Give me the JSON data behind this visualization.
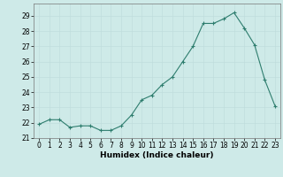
{
  "x": [
    0,
    1,
    2,
    3,
    4,
    5,
    6,
    7,
    8,
    9,
    10,
    11,
    12,
    13,
    14,
    15,
    16,
    17,
    18,
    19,
    20,
    21,
    22,
    23
  ],
  "y": [
    21.9,
    22.2,
    22.2,
    21.7,
    21.8,
    21.8,
    21.5,
    21.5,
    21.8,
    22.5,
    23.5,
    23.8,
    24.5,
    25.0,
    26.0,
    27.0,
    28.5,
    28.5,
    28.8,
    29.2,
    28.2,
    27.1,
    24.8,
    23.1
  ],
  "xlim": [
    -0.5,
    23.5
  ],
  "ylim": [
    21,
    29.8
  ],
  "yticks": [
    21,
    22,
    23,
    24,
    25,
    26,
    27,
    28,
    29
  ],
  "xticks": [
    0,
    1,
    2,
    3,
    4,
    5,
    6,
    7,
    8,
    9,
    10,
    11,
    12,
    13,
    14,
    15,
    16,
    17,
    18,
    19,
    20,
    21,
    22,
    23
  ],
  "xlabel": "Humidex (Indice chaleur)",
  "line_color": "#2e7d6e",
  "marker": "+",
  "marker_size": 3,
  "bg_color": "#ceeae8",
  "grid_color": "#c0dedd",
  "tick_fontsize": 5.5,
  "xlabel_fontsize": 6.5
}
